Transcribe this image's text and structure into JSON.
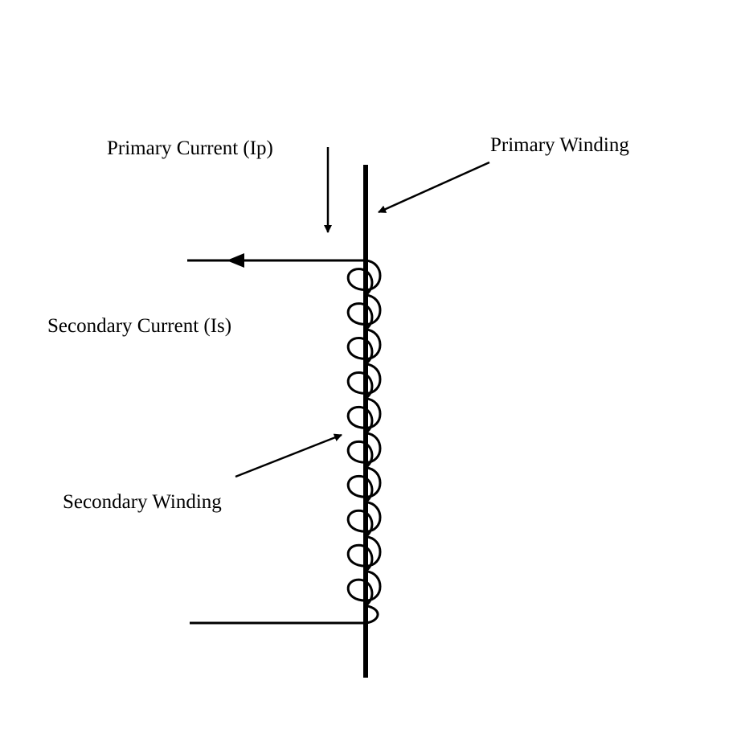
{
  "labels": {
    "primary_current": "Primary Current (Ip)",
    "primary_winding": "Primary Winding",
    "secondary_current": "Secondary Current (Is)",
    "secondary_winding": "Secondary Winding"
  },
  "secondary_winding_turns": 10,
  "colors": {
    "ink": "#000000",
    "background": "#ffffff"
  }
}
